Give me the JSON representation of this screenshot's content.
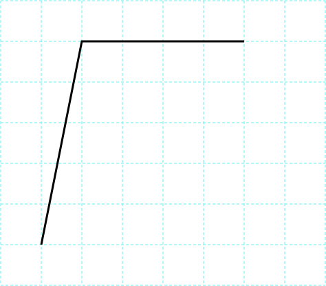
{
  "grid": {
    "columns": 8,
    "rows": 7,
    "color": "#66f2f2",
    "style": "dashed"
  },
  "polyline": {
    "color": "#000000",
    "points_in_grid_units": [
      [
        1,
        6
      ],
      [
        2,
        1
      ],
      [
        6,
        1
      ]
    ]
  }
}
